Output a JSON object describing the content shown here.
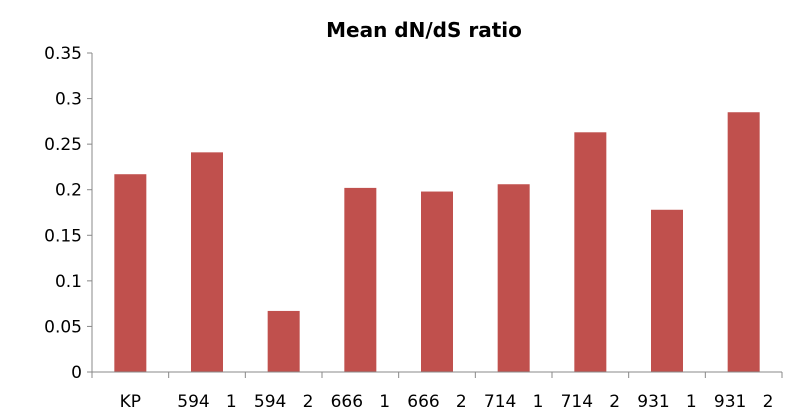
{
  "chart_data": {
    "type": "bar",
    "title": "Mean dN/dS ratio",
    "xlabel": "",
    "ylabel": "",
    "categories": [
      "KP",
      "594   1",
      "594   2",
      "666   1",
      "666   2",
      "714   1",
      "714   2",
      "931   1",
      "931   2"
    ],
    "values": [
      0.217,
      0.241,
      0.067,
      0.202,
      0.198,
      0.206,
      0.263,
      0.178,
      0.285
    ],
    "ylim": [
      0,
      0.35
    ],
    "yticks": [
      "0",
      "0.05",
      "0.1",
      "0.15",
      "0.2",
      "0.25",
      "0.3",
      "0.35"
    ],
    "grid": false,
    "legend": "none",
    "colors": {
      "bar": "#c0504d",
      "axis": "#888888",
      "text": "#000000"
    }
  }
}
